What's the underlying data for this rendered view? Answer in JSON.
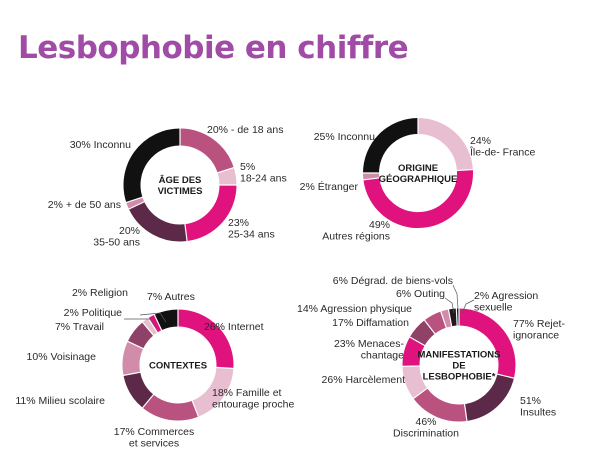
{
  "title": "Lesbophobie en chiffre",
  "colors": {
    "title": "#a04ca6",
    "magenta": "#e0137e",
    "black": "#111111",
    "plum": "#5c2a48",
    "mauve": "#b9527f",
    "rose": "#d18ca9",
    "pale": "#e7bfd0",
    "mid": "#8f4168",
    "dark": "#221a20",
    "line": "#555555"
  },
  "chart_data": [
    {
      "type": "pie",
      "donut": true,
      "title": "ÂGE DES VICTIMES",
      "center_lines": [
        "ÂGE DES",
        "VICTIMES"
      ],
      "slices": [
        {
          "label_lines": [
            "20% - de 18 ans"
          ],
          "value": 20,
          "color": "#b9527f"
        },
        {
          "label_lines": [
            "5%",
            "18-24 ans"
          ],
          "value": 5,
          "color": "#e7bfd0"
        },
        {
          "label_lines": [
            "23%",
            "25-34 ans"
          ],
          "value": 23,
          "color": "#e0137e"
        },
        {
          "label_lines": [
            "20%",
            "35-50 ans"
          ],
          "value": 20,
          "color": "#5c2a48"
        },
        {
          "label_lines": [
            "2% + de 50 ans"
          ],
          "value": 2,
          "color": "#d18ca9"
        },
        {
          "label_lines": [
            "30% Inconnu"
          ],
          "value": 30,
          "color": "#111111"
        }
      ]
    },
    {
      "type": "pie",
      "donut": true,
      "title": "ORIGINE GÉOGRAPHIQUE",
      "center_lines": [
        "ORIGINE",
        "GÉOGRAPHIQUE"
      ],
      "slices": [
        {
          "label_lines": [
            "24%",
            "Île-de- France"
          ],
          "value": 24,
          "color": "#e7bfd0"
        },
        {
          "label_lines": [
            "49%",
            "Autres régions"
          ],
          "value": 49,
          "color": "#e0137e"
        },
        {
          "label_lines": [
            "2% Étranger"
          ],
          "value": 2,
          "color": "#d18ca9"
        },
        {
          "label_lines": [
            "25% Inconnu"
          ],
          "value": 25,
          "color": "#111111"
        }
      ]
    },
    {
      "type": "pie",
      "donut": true,
      "title": "CONTEXTES",
      "center_lines": [
        "CONTEXTES"
      ],
      "slices": [
        {
          "label_lines": [
            "26% Internet"
          ],
          "value": 26,
          "color": "#e0137e"
        },
        {
          "label_lines": [
            "18% Famille et",
            "entourage proche"
          ],
          "value": 18,
          "color": "#e7bfd0"
        },
        {
          "label_lines": [
            "17% Commerces",
            "et services"
          ],
          "value": 17,
          "color": "#b9527f"
        },
        {
          "label_lines": [
            "11% Milieu scolaire"
          ],
          "value": 11,
          "color": "#5c2a48"
        },
        {
          "label_lines": [
            "10% Voisinage"
          ],
          "value": 10,
          "color": "#d18ca9"
        },
        {
          "label_lines": [
            "7% Travail"
          ],
          "value": 7,
          "color": "#8f4168"
        },
        {
          "label_lines": [
            "2% Politique"
          ],
          "value": 2,
          "color": "#e7bfd0"
        },
        {
          "label_lines": [
            "2% Religion"
          ],
          "value": 2,
          "color": "#e0137e"
        },
        {
          "label_lines": [
            "7% Autres"
          ],
          "value": 7,
          "color": "#111111"
        }
      ]
    },
    {
      "type": "pie",
      "donut": true,
      "title": "MANIFESTATIONS DE LESBOPHOBIE*",
      "center_lines": [
        "MANIFESTATIONS",
        "DE",
        "LESBOPHOBIE*"
      ],
      "slices": [
        {
          "label_lines": [
            "77% Rejet-",
            "ignorance"
          ],
          "value": 77,
          "color": "#e0137e"
        },
        {
          "label_lines": [
            "51%",
            "Insultes"
          ],
          "value": 51,
          "color": "#5c2a48"
        },
        {
          "label_lines": [
            "46%",
            "Discrimination"
          ],
          "value": 46,
          "color": "#b9527f"
        },
        {
          "label_lines": [
            "26% Harcèlement"
          ],
          "value": 26,
          "color": "#e7bfd0"
        },
        {
          "label_lines": [
            "23% Menaces-",
            "chantage"
          ],
          "value": 23,
          "color": "#e0137e"
        },
        {
          "label_lines": [
            "17% Diffamation"
          ],
          "value": 17,
          "color": "#8f4168"
        },
        {
          "label_lines": [
            "14% Agression physique"
          ],
          "value": 14,
          "color": "#b9527f"
        },
        {
          "label_lines": [
            "6% Dégrad. de biens-vols"
          ],
          "value": 6,
          "color": "#d18ca9"
        },
        {
          "label_lines": [
            "6% Outing"
          ],
          "value": 6,
          "color": "#221a20"
        },
        {
          "label_lines": [
            "2% Agression",
            "sexuelle"
          ],
          "value": 2,
          "color": "#111111"
        }
      ]
    }
  ]
}
